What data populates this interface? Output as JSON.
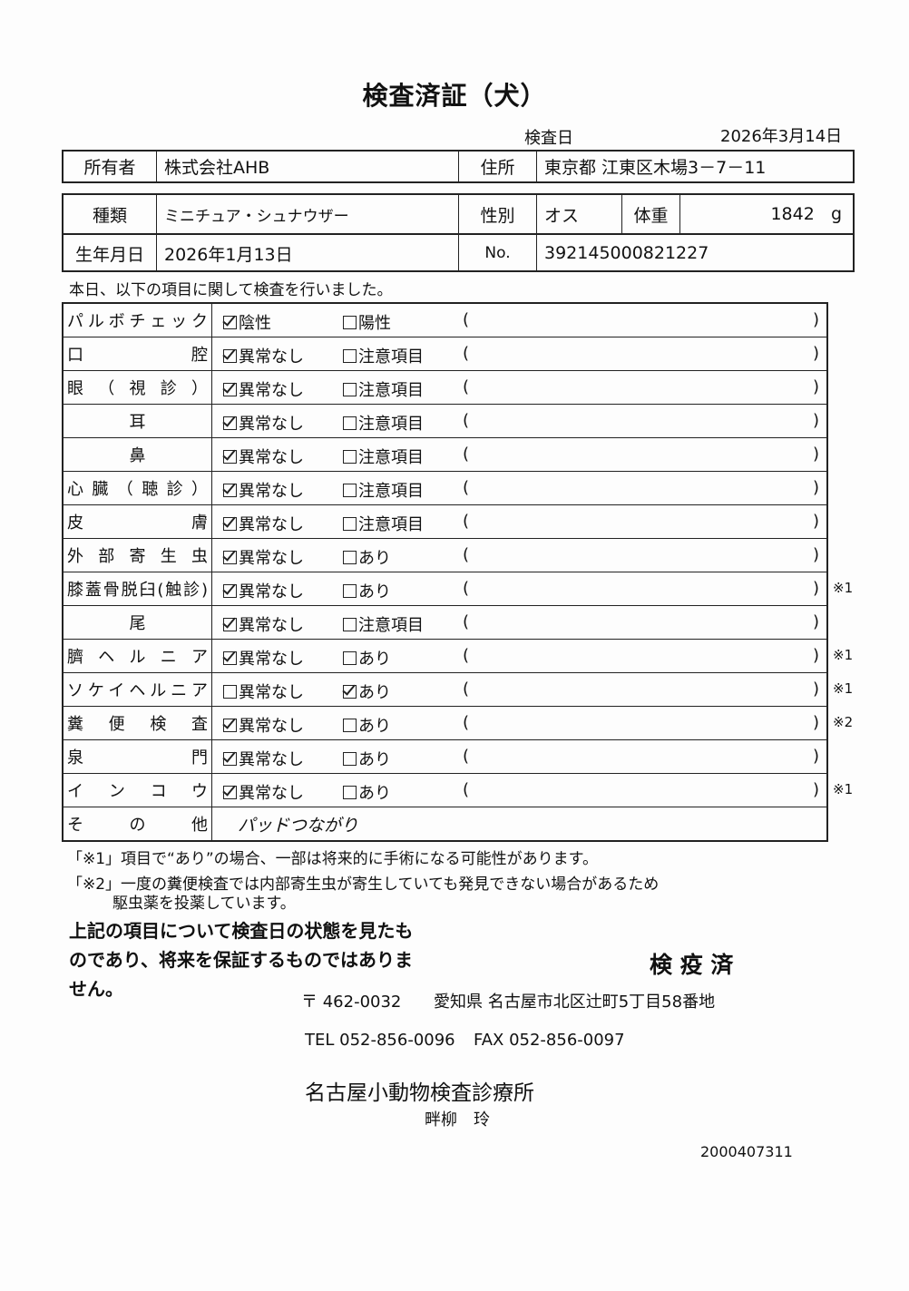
{
  "title": "検査済証（犬）",
  "exam_date": {
    "label": "検査日",
    "value": "2026年3月14日"
  },
  "owner": {
    "label": "所有者",
    "value": "株式会社AHB",
    "address_label": "住所",
    "address": "東京都 江東区木場3－7－11"
  },
  "pet": {
    "breed_label": "種類",
    "breed": "ミニチュア・シュナウザー",
    "sex_label": "性別",
    "sex": "オス",
    "weight_label": "体重",
    "weight": "1842",
    "weight_unit": "g",
    "birth_label": "生年月日",
    "birth": "2026年1月13日",
    "no_label": "No.",
    "no": "392145000821227"
  },
  "intro": "本日、以下の項目に関して検査を行いました。",
  "checks": [
    {
      "label": "パルボチェック",
      "opt1": "陰性",
      "opt1_checked": true,
      "opt2": "陽性",
      "opt2_checked": false,
      "note": ""
    },
    {
      "label": "口腔",
      "opt1": "異常なし",
      "opt1_checked": true,
      "opt2": "注意項目",
      "opt2_checked": false,
      "note": ""
    },
    {
      "label": "眼（視診）",
      "opt1": "異常なし",
      "opt1_checked": true,
      "opt2": "注意項目",
      "opt2_checked": false,
      "note": ""
    },
    {
      "label": "耳",
      "center": true,
      "opt1": "異常なし",
      "opt1_checked": true,
      "opt2": "注意項目",
      "opt2_checked": false,
      "note": ""
    },
    {
      "label": "鼻",
      "center": true,
      "opt1": "異常なし",
      "opt1_checked": true,
      "opt2": "注意項目",
      "opt2_checked": false,
      "note": ""
    },
    {
      "label": "心臓（聴診）",
      "opt1": "異常なし",
      "opt1_checked": true,
      "opt2": "注意項目",
      "opt2_checked": false,
      "note": ""
    },
    {
      "label": "皮膚",
      "opt1": "異常なし",
      "opt1_checked": true,
      "opt2": "注意項目",
      "opt2_checked": false,
      "note": ""
    },
    {
      "label": "外部寄生虫",
      "opt1": "異常なし",
      "opt1_checked": true,
      "opt2": "あり",
      "opt2_checked": false,
      "note": ""
    },
    {
      "label": "膝蓋骨脱臼(触診)",
      "opt1": "異常なし",
      "opt1_checked": true,
      "opt2": "あり",
      "opt2_checked": false,
      "note": "※1"
    },
    {
      "label": "尾",
      "center": true,
      "opt1": "異常なし",
      "opt1_checked": true,
      "opt2": "注意項目",
      "opt2_checked": false,
      "note": ""
    },
    {
      "label": "臍ヘルニア",
      "opt1": "異常なし",
      "opt1_checked": true,
      "opt2": "あり",
      "opt2_checked": false,
      "note": "※1"
    },
    {
      "label": "ソケイヘルニア",
      "opt1": "異常なし",
      "opt1_checked": false,
      "opt2": "あり",
      "opt2_checked": true,
      "note": "※1"
    },
    {
      "label": "糞便検査",
      "opt1": "異常なし",
      "opt1_checked": true,
      "opt2": "あり",
      "opt2_checked": false,
      "note": "※2"
    },
    {
      "label": "泉門",
      "opt1": "異常なし",
      "opt1_checked": true,
      "opt2": "あり",
      "opt2_checked": false,
      "note": ""
    },
    {
      "label": "インコウ",
      "opt1": "異常なし",
      "opt1_checked": true,
      "opt2": "あり",
      "opt2_checked": false,
      "note": "※1"
    }
  ],
  "other": {
    "label": "その他",
    "value": "パッドつながり"
  },
  "footnote1": "「※1」項目で“あり”の場合、一部は将来的に手術になる可能性があります。",
  "footnote2a": "「※2」一度の糞便検査では内部寄生虫が寄生していても発見できない場合があるため",
  "footnote2b": "駆虫薬を投薬しています。",
  "disclaimer": "上記の項目について検査日の状態を見たものであり、将来を保証するものではありません。",
  "stamp": "検 疫 済",
  "clinic": {
    "postal": "〒 462-0032",
    "address": "愛知県 名古屋市北区辻町5丁目58番地",
    "tel": "TEL 052-856-0096",
    "fax": "FAX 052-856-0097",
    "name": "名古屋小動物検査診療所",
    "person": "畔柳　玲"
  },
  "doc_no": "2000407311"
}
